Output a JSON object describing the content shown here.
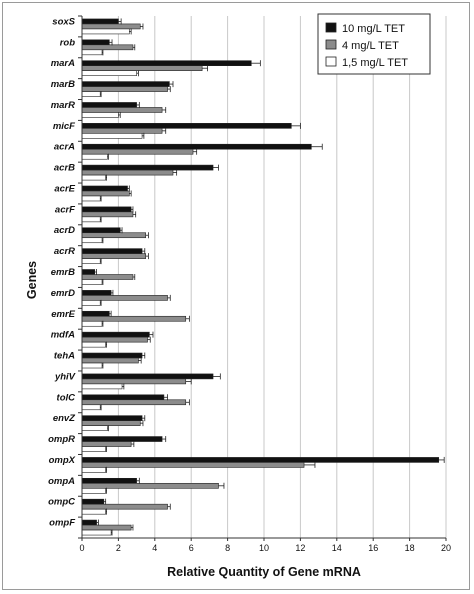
{
  "chart_data": {
    "type": "bar",
    "orientation": "horizontal",
    "xlabel": "Relative Quantity of Gene mRNA",
    "ylabel": "Genes",
    "xlim": [
      0,
      20
    ],
    "xticks": [
      "0",
      "2",
      "4",
      "6",
      "8",
      "10",
      "12",
      "14",
      "16",
      "18",
      "20"
    ],
    "grid": "vertical",
    "legend_position": "top-right",
    "categories": [
      "soxS",
      "rob",
      "marA",
      "marB",
      "marR",
      "micF",
      "acrA",
      "acrB",
      "acrE",
      "acrF",
      "acrD",
      "acrR",
      "emrB",
      "emrD",
      "emrE",
      "mdfA",
      "tehA",
      "yhiV",
      "tolC",
      "envZ",
      "ompR",
      "ompX",
      "ompA",
      "ompC",
      "ompF"
    ],
    "series": [
      {
        "name": "10  mg/L TET",
        "color": "#111111",
        "values": [
          2.0,
          1.5,
          9.3,
          4.8,
          3.0,
          11.5,
          12.6,
          7.2,
          2.5,
          2.7,
          2.1,
          3.3,
          0.7,
          1.6,
          1.5,
          3.7,
          3.3,
          7.2,
          4.5,
          3.3,
          4.4,
          19.6,
          3.0,
          1.2,
          0.8
        ]
      },
      {
        "name": "4  mg/L TET",
        "color": "#8c8c8c",
        "values": [
          3.2,
          2.8,
          6.6,
          4.7,
          4.4,
          4.4,
          6.1,
          5.0,
          2.6,
          2.8,
          3.5,
          3.5,
          2.8,
          4.7,
          5.7,
          3.6,
          3.1,
          5.7,
          5.7,
          3.2,
          2.7,
          12.2,
          7.5,
          4.7,
          2.7
        ]
      },
      {
        "name": "1,5 mg/L TET",
        "color": "#ffffff",
        "values": [
          2.6,
          1.1,
          3.0,
          1.0,
          2.0,
          3.3,
          1.4,
          1.3,
          1.0,
          1.0,
          1.1,
          1.0,
          1.1,
          1.0,
          1.1,
          1.3,
          1.1,
          2.2,
          1.0,
          1.4,
          1.3,
          1.3,
          1.3,
          1.3,
          1.6
        ]
      }
    ],
    "errors": [
      [
        0.15,
        0.15,
        0.5,
        0.2,
        0.15,
        0.5,
        0.6,
        0.3,
        0.1,
        0.1,
        0.1,
        0.15,
        0.1,
        0.1,
        0.1,
        0.2,
        0.15,
        0.4,
        0.2,
        0.15,
        0.2,
        0.3,
        0.15,
        0.1,
        0.1
      ],
      [
        0.15,
        0.1,
        0.3,
        0.15,
        0.2,
        0.2,
        0.2,
        0.2,
        0.1,
        0.15,
        0.15,
        0.15,
        0.1,
        0.15,
        0.2,
        0.15,
        0.15,
        0.3,
        0.2,
        0.15,
        0.15,
        0.6,
        0.3,
        0.15,
        0.1
      ],
      [
        0.1,
        0.05,
        0.1,
        0.05,
        0.1,
        0.1,
        0.05,
        0.05,
        0.05,
        0.05,
        0.05,
        0.05,
        0.05,
        0.05,
        0.05,
        0.05,
        0.05,
        0.1,
        0.05,
        0.05,
        0.05,
        0.05,
        0.05,
        0.05,
        0.05
      ]
    ]
  }
}
